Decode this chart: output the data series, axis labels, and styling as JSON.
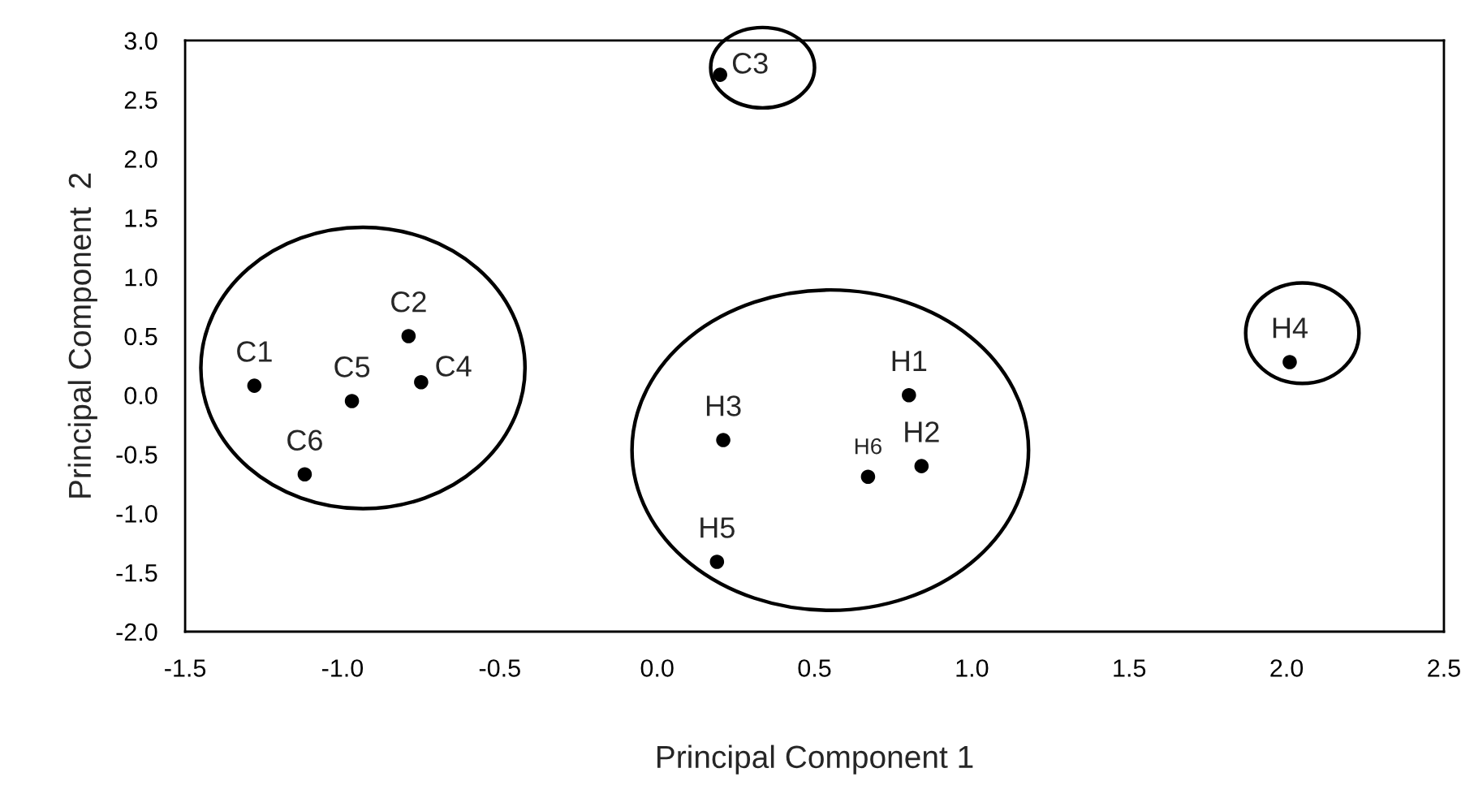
{
  "chart_data": {
    "type": "scatter",
    "xlabel": "Principal Component 1",
    "ylabel": "Principal Component  2",
    "x": [
      -1.28,
      -0.79,
      0.2,
      -0.75,
      -0.97,
      -1.12,
      0.8,
      0.84,
      0.21,
      2.01,
      0.19,
      0.67
    ],
    "series": [
      {
        "color": "#000000",
        "values": [
          0.08,
          0.5,
          2.71,
          0.11,
          -0.05,
          -0.67,
          0.0,
          -0.6,
          -0.38,
          0.28,
          -1.41,
          -0.69
        ]
      }
    ],
    "annotations": [
      {
        "text": "C1",
        "x": -1.28,
        "y": 0.08
      },
      {
        "text": "C2",
        "x": -0.79,
        "y": 0.5
      },
      {
        "text": "C3",
        "x": 0.2,
        "y": 2.71
      },
      {
        "text": "C4",
        "x": -0.75,
        "y": 0.11
      },
      {
        "text": "C5",
        "x": -0.97,
        "y": -0.05
      },
      {
        "text": "C6",
        "x": -1.12,
        "y": -0.67
      },
      {
        "text": "H1",
        "x": 0.8,
        "y": 0.0
      },
      {
        "text": "H2",
        "x": 0.84,
        "y": -0.6
      },
      {
        "text": "H3",
        "x": 0.21,
        "y": -0.38
      },
      {
        "text": "H4",
        "x": 2.01,
        "y": 0.28
      },
      {
        "text": "H5",
        "x": 0.19,
        "y": -1.41
      },
      {
        "text": "H6",
        "x": 0.67,
        "y": -0.69
      }
    ],
    "xlim": [
      -1.5,
      2.5
    ],
    "xticks": [
      {
        "value": -1.5,
        "label": "-1.5"
      },
      {
        "value": -1.0,
        "label": "-1.0"
      },
      {
        "value": -0.5,
        "label": "-0.5"
      },
      {
        "value": 0.0,
        "label": "0.0"
      },
      {
        "value": 0.5,
        "label": "0.5"
      },
      {
        "value": 1.0,
        "label": "1.0"
      },
      {
        "value": 1.5,
        "label": "1.5"
      },
      {
        "value": 2.0,
        "label": "2.0"
      },
      {
        "value": 2.5,
        "label": "2.5"
      }
    ],
    "ylim": [
      -2.0,
      3.0
    ],
    "yticks": [
      {
        "value": -2.0,
        "label": "-2.0"
      },
      {
        "value": -1.5,
        "label": "-1.5"
      },
      {
        "value": -1.0,
        "label": "-1.0"
      },
      {
        "value": -0.5,
        "label": "-0.5"
      },
      {
        "value": 0.0,
        "label": "0.0"
      },
      {
        "value": 0.5,
        "label": "0.5"
      },
      {
        "value": 1.0,
        "label": "1.0"
      },
      {
        "value": 1.5,
        "label": "1.5"
      },
      {
        "value": 2.0,
        "label": "2.0"
      },
      {
        "value": 2.5,
        "label": "2.5"
      },
      {
        "value": 3.0,
        "label": "3.0"
      }
    ],
    "marker": "circle",
    "grid": false,
    "legend": false
  }
}
